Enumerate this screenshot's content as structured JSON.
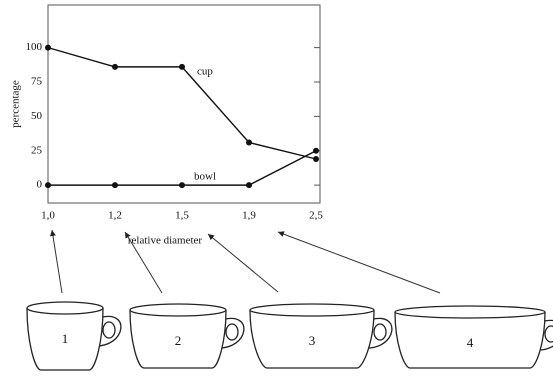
{
  "chart_data": {
    "type": "line",
    "x_label": "relative diameter",
    "y_label": "percentage",
    "categories": [
      "1,0",
      "1,2",
      "1,5",
      "1,9",
      "2,5"
    ],
    "series": [
      {
        "name": "cup",
        "color": "#111111",
        "values": [
          100,
          86,
          86,
          31,
          19
        ]
      },
      {
        "name": "bowl",
        "color": "#111111",
        "values": [
          0,
          0,
          0,
          0,
          25
        ]
      }
    ],
    "ylim": [
      -13,
      131
    ],
    "yticks": [
      0,
      25,
      50,
      75,
      100
    ],
    "grid": false
  },
  "cup_labels": [
    "1",
    "2",
    "3",
    "4"
  ]
}
